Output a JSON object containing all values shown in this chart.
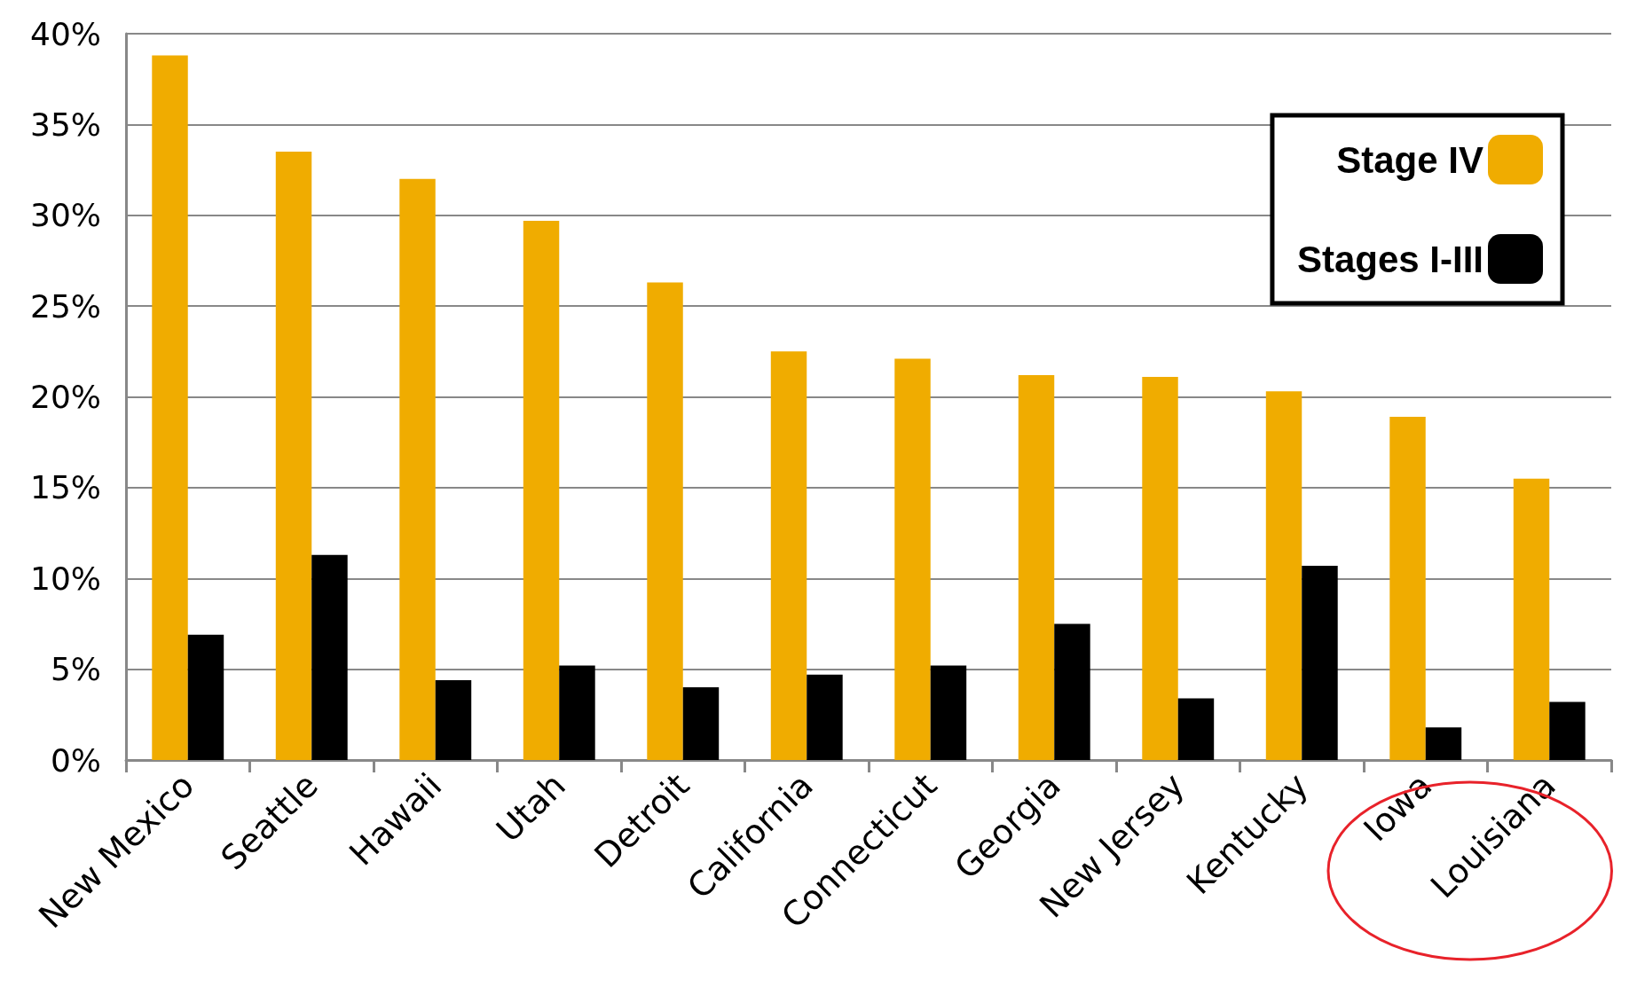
{
  "chart_data": {
    "type": "bar",
    "categories": [
      "New Mexico",
      "Seattle",
      "Hawaii",
      "Utah",
      "Detroit",
      "California",
      "Connecticut",
      "Georgia",
      "New Jersey",
      "Kentucky",
      "Iowa",
      "Louisiana"
    ],
    "series": [
      {
        "name": "Stage IV",
        "color": "#f0ac00",
        "values": [
          38.8,
          33.5,
          32.0,
          29.7,
          26.3,
          22.5,
          22.1,
          21.2,
          21.1,
          20.3,
          18.9,
          15.5
        ]
      },
      {
        "name": "Stages I-III",
        "color": "#000000",
        "values": [
          6.9,
          11.3,
          4.4,
          5.2,
          4.0,
          4.7,
          5.2,
          7.5,
          3.4,
          10.7,
          1.8,
          3.2
        ]
      }
    ],
    "ylim": [
      0,
      40
    ],
    "yticks": [
      {
        "value": 0,
        "label": "0%"
      },
      {
        "value": 5,
        "label": "5%"
      },
      {
        "value": 10,
        "label": "10%"
      },
      {
        "value": 15,
        "label": "15%"
      },
      {
        "value": 20,
        "label": "20%"
      },
      {
        "value": 25,
        "label": "25%"
      },
      {
        "value": 30,
        "label": "30%"
      },
      {
        "value": 35,
        "label": "35%"
      },
      {
        "value": 40,
        "label": "40%"
      }
    ],
    "grid": "y",
    "legend": "top right"
  }
}
